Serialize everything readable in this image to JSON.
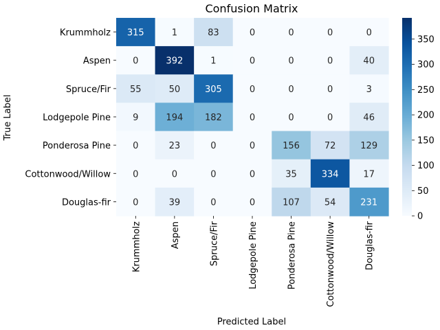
{
  "chart_data": {
    "type": "heatmap",
    "title": "Confusion Matrix",
    "xlabel": "Predicted Label",
    "ylabel": "True Label",
    "x_categories": [
      "Krummholz",
      "Aspen",
      "Spruce/Fir",
      "Lodgepole Pine",
      "Ponderosa Pine",
      "Cottonwood/Willow",
      "Douglas-fir"
    ],
    "y_categories": [
      "Krummholz",
      "Aspen",
      "Spruce/Fir",
      "Lodgepole Pine",
      "Ponderosa Pine",
      "Cottonwood/Willow",
      "Douglas-fir"
    ],
    "values": [
      [
        315,
        1,
        83,
        0,
        0,
        0,
        0
      ],
      [
        0,
        392,
        1,
        0,
        0,
        0,
        40
      ],
      [
        55,
        50,
        305,
        0,
        0,
        0,
        3
      ],
      [
        9,
        194,
        182,
        0,
        0,
        0,
        46
      ],
      [
        0,
        23,
        0,
        0,
        156,
        72,
        129
      ],
      [
        0,
        0,
        0,
        0,
        35,
        334,
        17
      ],
      [
        0,
        39,
        0,
        0,
        107,
        54,
        231
      ]
    ],
    "colormap": "Blues",
    "color_min": "#f7fbff",
    "color_max": "#08306b",
    "vmin": 0,
    "vmax": 392,
    "colorbar_ticks": [
      0,
      50,
      100,
      150,
      200,
      250,
      300,
      350
    ],
    "grid": false
  }
}
